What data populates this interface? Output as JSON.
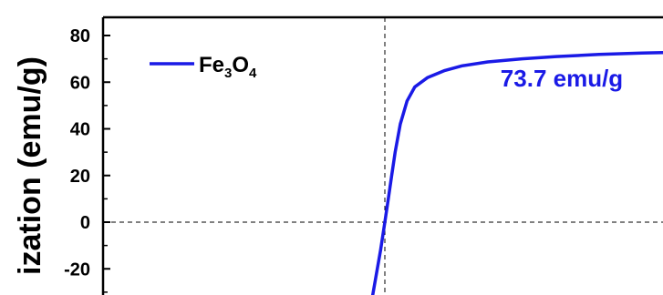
{
  "chart_data": {
    "type": "line",
    "ylabel": "ization (emu/g)",
    "y_ticks": [
      "80",
      "60",
      "40",
      "20",
      "0",
      "-20"
    ],
    "ylim": [
      -30,
      90
    ],
    "x_visible_range": [
      -5.8,
      5.8
    ],
    "grid": false,
    "reference_lines": {
      "x": 0,
      "y": 0,
      "style": "dashed"
    },
    "legend": {
      "position": "top-left",
      "line_color": "#1a1ae6"
    },
    "series": [
      {
        "name": "Fe3O4",
        "color": "#1a1ae6",
        "x": [
          -0.15,
          -0.05,
          0.0,
          0.04,
          0.08,
          0.12,
          0.18,
          0.26,
          0.35,
          0.5,
          0.7,
          0.9,
          1.2,
          1.6,
          2.0,
          2.5,
          3.0,
          3.5,
          4.0,
          4.5,
          5.0
        ],
        "y": [
          -33,
          -12,
          0,
          10,
          20,
          30,
          42,
          52,
          58,
          62,
          65,
          67,
          68.7,
          70,
          71,
          71.9,
          72.5,
          72.9,
          73.2,
          73.5,
          73.7
        ]
      }
    ],
    "annotations": [
      {
        "text": "73.7 emu/g",
        "color": "#1a1ae6"
      }
    ]
  },
  "legend_label": {
    "main": "Fe",
    "sub1": "3",
    "mid": "O",
    "sub2": "4"
  }
}
